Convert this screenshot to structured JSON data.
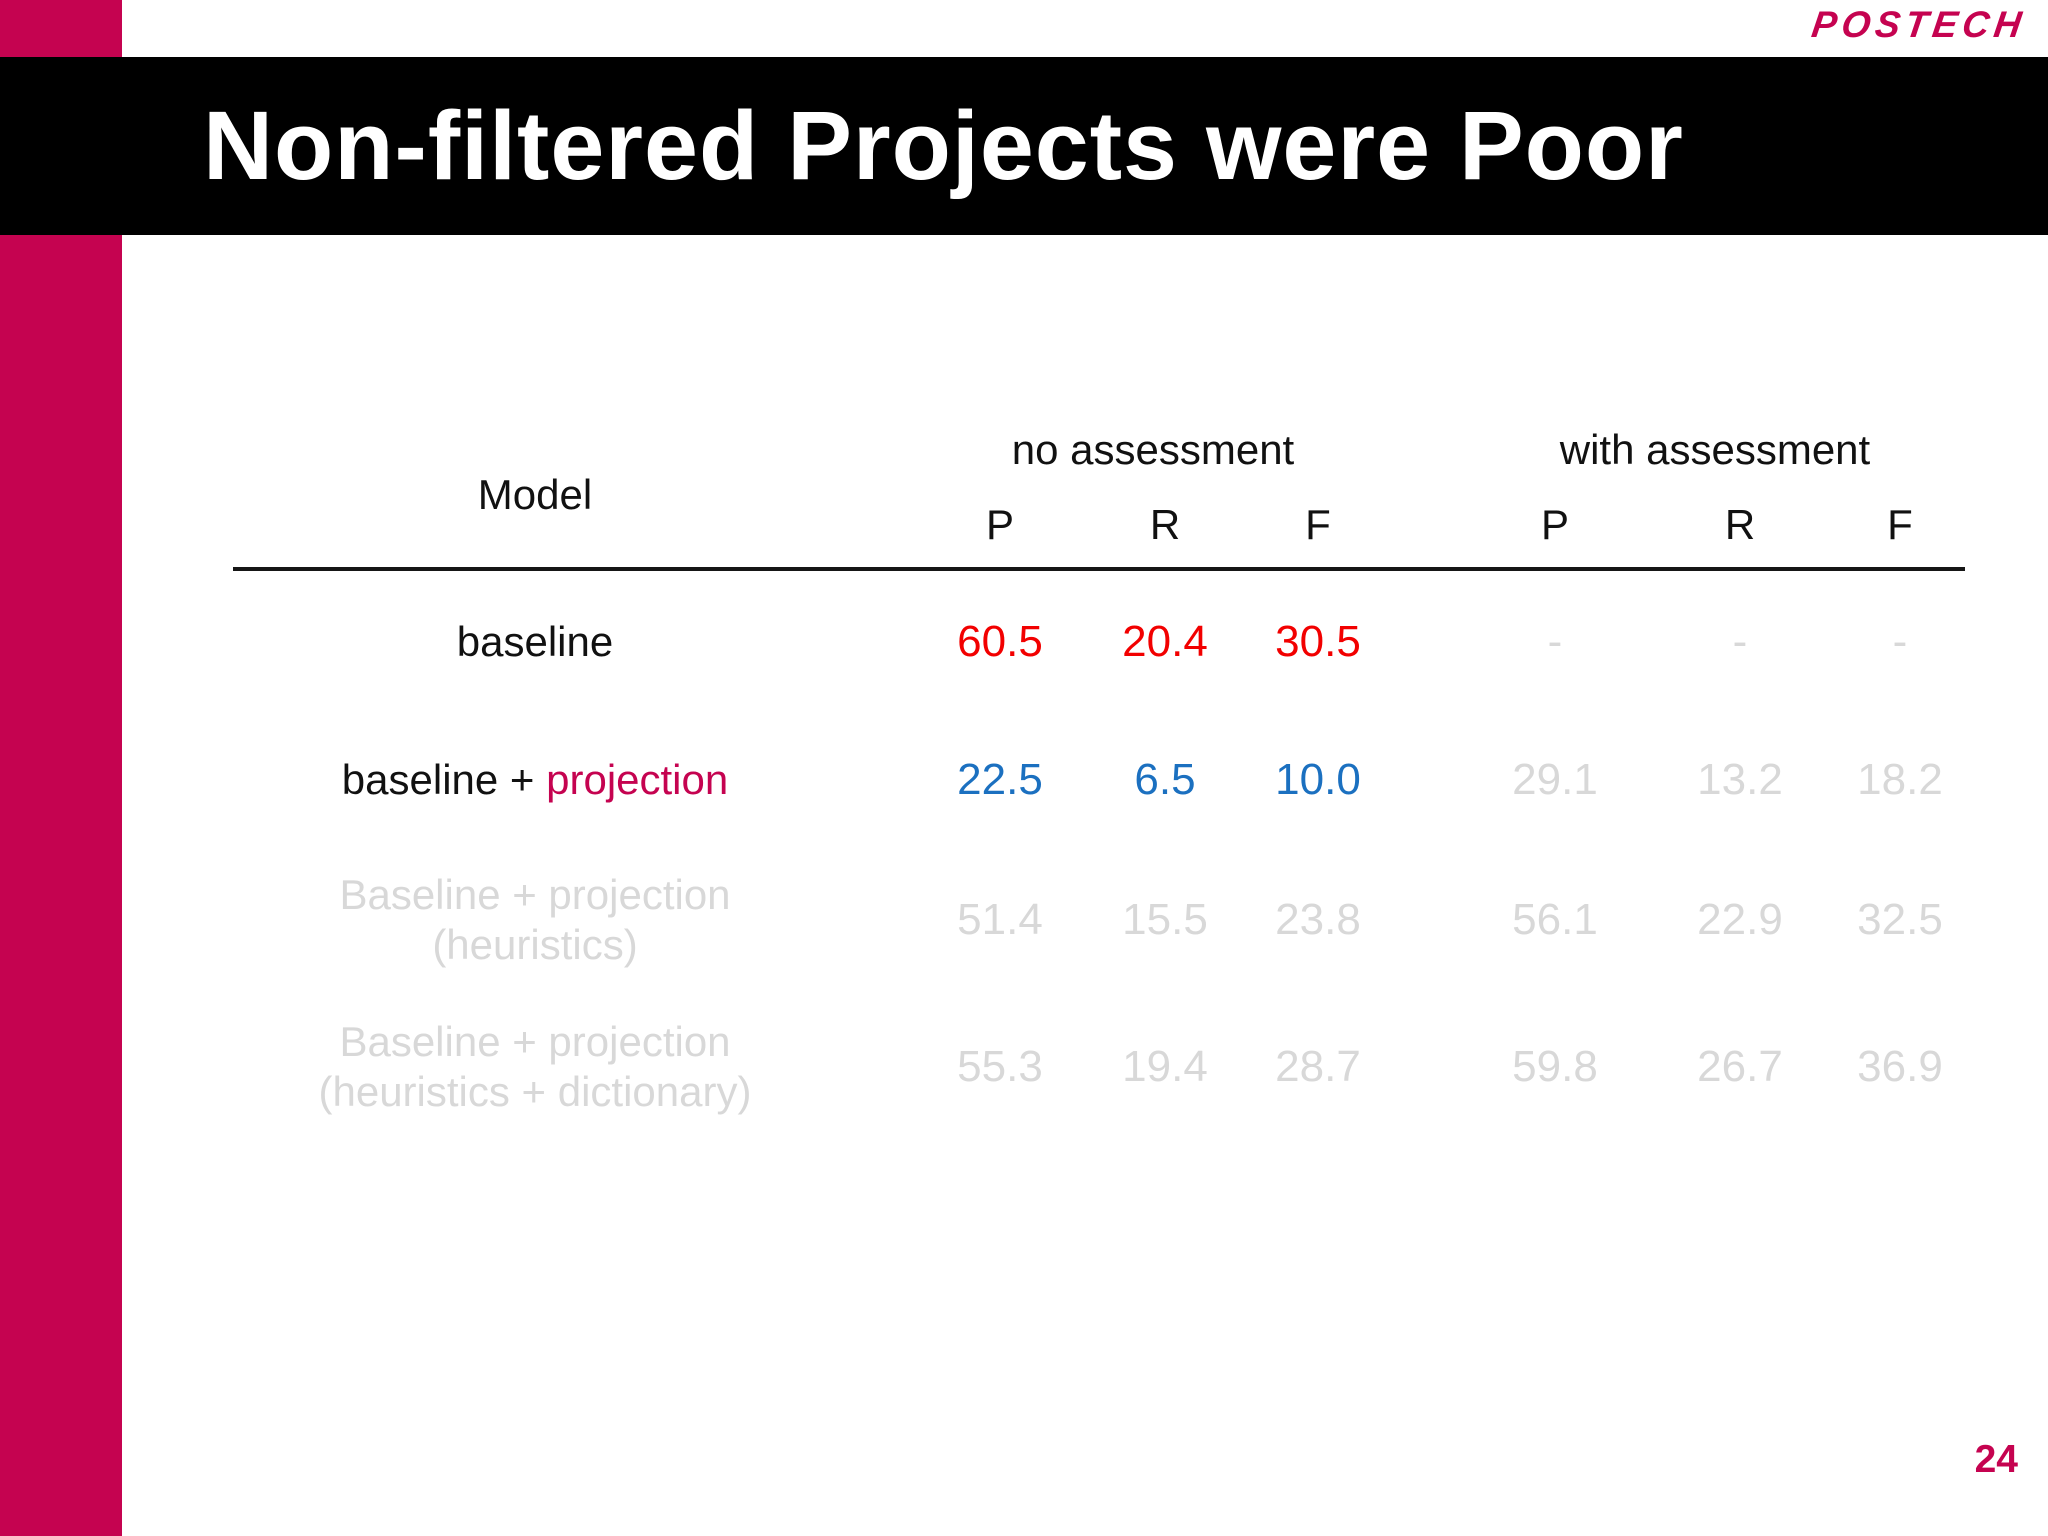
{
  "slide": {
    "logo_text": "POSTECH",
    "title": "Non-filtered Projects were Poor",
    "page_number": "24"
  },
  "colors": {
    "accent": "#C50350",
    "red": "#F20000",
    "blue": "#1B70C0",
    "muted": "#D8D8D8",
    "text": "#111111",
    "title_bg": "#000000",
    "title_fg": "#FFFFFF"
  },
  "table": {
    "model_header": "Model",
    "groups": [
      {
        "label": "no assessment"
      },
      {
        "label": "with assessment"
      }
    ],
    "metric_headers": [
      "P",
      "R",
      "F"
    ],
    "rows": [
      {
        "label_lines": [
          [
            {
              "t": "baseline",
              "c": "text"
            }
          ]
        ],
        "values": [
          {
            "v": "60.5",
            "c": "red"
          },
          {
            "v": "20.4",
            "c": "red"
          },
          {
            "v": "30.5",
            "c": "red"
          },
          {
            "v": "-",
            "c": "muted"
          },
          {
            "v": "-",
            "c": "muted"
          },
          {
            "v": "-",
            "c": "muted"
          }
        ]
      },
      {
        "label_lines": [
          [
            {
              "t": "baseline + ",
              "c": "text"
            },
            {
              "t": "projection",
              "c": "accent"
            }
          ]
        ],
        "values": [
          {
            "v": "22.5",
            "c": "blue"
          },
          {
            "v": "6.5",
            "c": "blue"
          },
          {
            "v": "10.0",
            "c": "blue"
          },
          {
            "v": "29.1",
            "c": "muted"
          },
          {
            "v": "13.2",
            "c": "muted"
          },
          {
            "v": "18.2",
            "c": "muted"
          }
        ]
      },
      {
        "label_lines": [
          [
            {
              "t": "Baseline + projection",
              "c": "muted"
            }
          ],
          [
            {
              "t": "(heuristics)",
              "c": "muted"
            }
          ]
        ],
        "values": [
          {
            "v": "51.4",
            "c": "muted"
          },
          {
            "v": "15.5",
            "c": "muted"
          },
          {
            "v": "23.8",
            "c": "muted"
          },
          {
            "v": "56.1",
            "c": "muted"
          },
          {
            "v": "22.9",
            "c": "muted"
          },
          {
            "v": "32.5",
            "c": "muted"
          }
        ]
      },
      {
        "label_lines": [
          [
            {
              "t": "Baseline + projection",
              "c": "muted"
            }
          ],
          [
            {
              "t": "(heuristics + dictionary)",
              "c": "muted"
            }
          ]
        ],
        "values": [
          {
            "v": "55.3",
            "c": "muted"
          },
          {
            "v": "19.4",
            "c": "muted"
          },
          {
            "v": "28.7",
            "c": "muted"
          },
          {
            "v": "59.8",
            "c": "muted"
          },
          {
            "v": "26.7",
            "c": "muted"
          },
          {
            "v": "36.9",
            "c": "muted"
          }
        ]
      }
    ]
  },
  "chart_data": {
    "type": "table",
    "title": "Non-filtered Projects were Poor",
    "column_groups": [
      "no assessment",
      "with assessment"
    ],
    "columns": [
      "Model",
      "no assessment P",
      "no assessment R",
      "no assessment F",
      "with assessment P",
      "with assessment R",
      "with assessment F"
    ],
    "rows": [
      [
        "baseline",
        60.5,
        20.4,
        30.5,
        null,
        null,
        null
      ],
      [
        "baseline + projection",
        22.5,
        6.5,
        10.0,
        29.1,
        13.2,
        18.2
      ],
      [
        "Baseline + projection (heuristics)",
        51.4,
        15.5,
        23.8,
        56.1,
        22.9,
        32.5
      ],
      [
        "Baseline + projection (heuristics + dictionary)",
        55.3,
        19.4,
        28.7,
        59.8,
        26.7,
        36.9
      ]
    ]
  }
}
